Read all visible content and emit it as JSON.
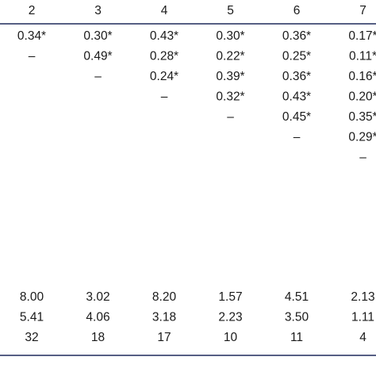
{
  "table": {
    "header": [
      "2",
      "3",
      "4",
      "5",
      "6",
      "7"
    ],
    "correlations": [
      [
        "0.34*",
        "0.30*",
        "0.43*",
        "0.30*",
        "0.36*",
        "0.17*"
      ],
      [
        "–",
        "0.49*",
        "0.28*",
        "0.22*",
        "0.25*",
        "0.11*"
      ],
      [
        null,
        "–",
        "0.24*",
        "0.39*",
        "0.36*",
        "0.16*"
      ],
      [
        null,
        null,
        "–",
        "0.32*",
        "0.43*",
        "0.20*"
      ],
      [
        null,
        null,
        null,
        "–",
        "0.45*",
        "0.35*"
      ],
      [
        null,
        null,
        null,
        null,
        "–",
        "0.29*"
      ],
      [
        null,
        null,
        null,
        null,
        null,
        "–"
      ]
    ],
    "statistics": [
      [
        "8.00",
        "3.02",
        "8.20",
        "1.57",
        "4.51",
        "2.13"
      ],
      [
        "5.41",
        "4.06",
        "3.18",
        "2.23",
        "3.50",
        "1.11"
      ],
      [
        "32",
        "18",
        "17",
        "10",
        "11",
        "4"
      ]
    ]
  }
}
